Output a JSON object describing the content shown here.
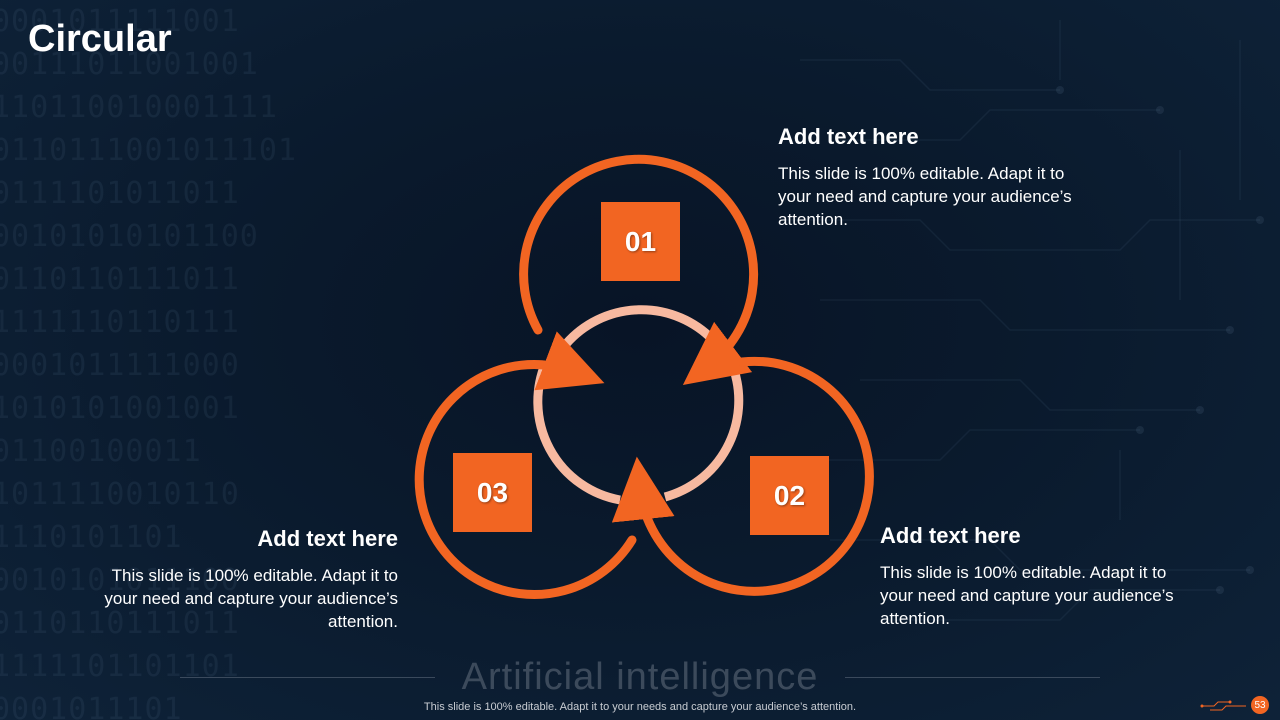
{
  "slide": {
    "title": "Circular",
    "footer_title": "Artificial intelligence",
    "footer_note": "This slide is 100% editable. Adapt it to your needs and capture your audience’s attention.",
    "page_number": "53"
  },
  "steps": [
    {
      "number": "01",
      "heading": "Add text here",
      "body": "This slide is 100% editable. Adapt it to your need and capture your audience’s attention."
    },
    {
      "number": "02",
      "heading": "Add text here",
      "body": "This slide is 100% editable. Adapt it to your need and capture your audience’s attention."
    },
    {
      "number": "03",
      "heading": "Add text here",
      "body": "This slide is 100% editable. Adapt it to your need and capture your audience’s attention."
    }
  ],
  "background_binary": "0001011111001\n00111011001001\n110110010001111\n0110111001011101\n0111101011011\n00101010101100\n0110110111011\n1111110110111\n0001011111000\n1010101001001\n01100100011\n1011110010110\n1110101101\n0010101011100\n0110110111011\n1111101101101\n0001011101",
  "colors": {
    "accent": "#f26522",
    "inner_ring": "#f7b9a0",
    "background": "#0a1a2d",
    "text": "#ffffff"
  }
}
